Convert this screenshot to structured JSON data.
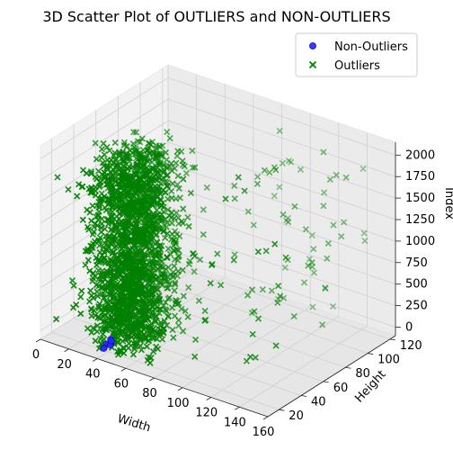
{
  "chart_data": {
    "type": "scatter",
    "projection": "3d",
    "title": "3D Scatter Plot of OUTLIERS and NON-OUTLIERS",
    "xlabel": "Width",
    "ylabel": "Height",
    "zlabel": "Index",
    "xlim": [
      0,
      160
    ],
    "ylim": [
      10,
      125
    ],
    "zlim": [
      -100,
      2150
    ],
    "xticks": [
      "0",
      "20",
      "40",
      "60",
      "80",
      "100",
      "120",
      "140",
      "160"
    ],
    "yticks": [
      "20",
      "40",
      "60",
      "80",
      "100",
      "120"
    ],
    "zticks": [
      "0",
      "250",
      "500",
      "750",
      "1000",
      "1250",
      "1500",
      "1750",
      "2000"
    ],
    "grid": true,
    "legend_position": "upper right",
    "series": [
      {
        "name": "Non-Outliers",
        "marker": "circle",
        "color": "#0000ff",
        "points": [
          [
            45,
            12,
            80
          ],
          [
            47,
            13,
            140
          ],
          [
            44,
            11,
            40
          ],
          [
            48,
            12,
            110
          ],
          [
            46,
            14,
            60
          ],
          [
            43,
            12,
            20
          ],
          [
            49,
            11,
            150
          ]
        ]
      },
      {
        "name": "Outliers",
        "marker": "x",
        "color": "#008000",
        "generated": true,
        "count": 2100
      }
    ]
  }
}
